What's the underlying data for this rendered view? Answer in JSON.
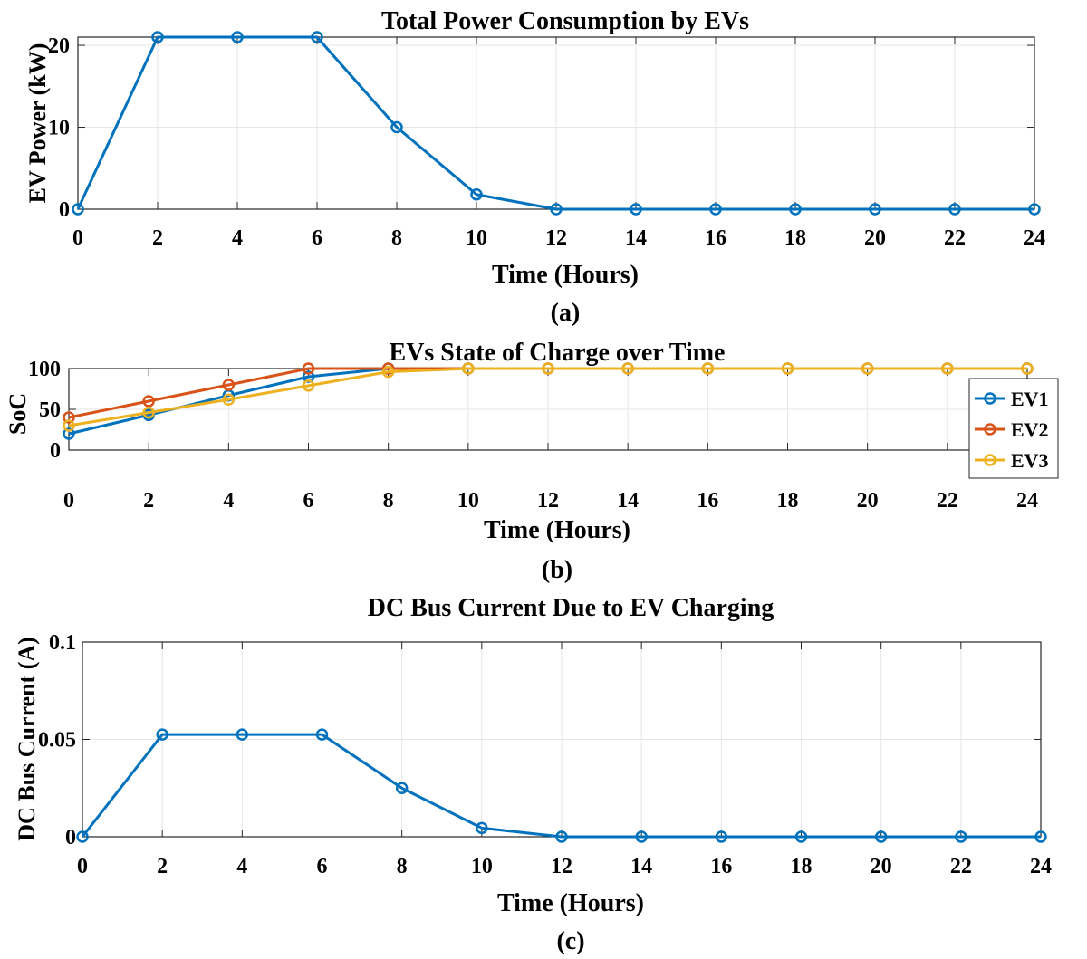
{
  "chart_data": [
    {
      "type": "line",
      "title": "Total Power Consumption by EVs",
      "xlabel": "Time (Hours)",
      "ylabel": "EV Power (kW)",
      "caption": "(a)",
      "xlim": [
        0,
        24
      ],
      "ylim": [
        0,
        21
      ],
      "xticks": [
        0,
        2,
        4,
        6,
        8,
        10,
        12,
        14,
        16,
        18,
        20,
        22,
        24
      ],
      "yticks": [
        0,
        10,
        20
      ],
      "grid": true,
      "x": [
        0,
        2,
        4,
        6,
        8,
        10,
        12,
        14,
        16,
        18,
        20,
        22,
        24
      ],
      "series": [
        {
          "values": [
            0,
            21,
            21,
            21,
            10,
            1.8,
            0,
            0,
            0,
            0,
            0,
            0,
            0
          ],
          "color": "#0072BD"
        }
      ]
    },
    {
      "type": "line",
      "title": "EVs State of Charge over Time",
      "xlabel": "Time (Hours)",
      "ylabel": "SoC",
      "caption": "(b)",
      "xlim": [
        0,
        24
      ],
      "ylim": [
        0,
        100
      ],
      "xticks": [
        0,
        2,
        4,
        6,
        8,
        10,
        12,
        14,
        16,
        18,
        20,
        22,
        24
      ],
      "yticks": [
        0,
        50,
        100
      ],
      "grid": true,
      "legend": "right",
      "x": [
        0,
        2,
        4,
        6,
        8,
        10,
        12,
        14,
        16,
        18,
        20,
        22,
        24
      ],
      "series": [
        {
          "name": "EV1",
          "values": [
            20,
            43,
            67,
            90,
            100,
            100,
            100,
            100,
            100,
            100,
            100,
            100,
            100
          ],
          "color": "#0072BD"
        },
        {
          "name": "EV2",
          "values": [
            40,
            60,
            80,
            100,
            100,
            100,
            100,
            100,
            100,
            100,
            100,
            100,
            100
          ],
          "color": "#D95319"
        },
        {
          "name": "EV3",
          "values": [
            30,
            46,
            62,
            79,
            96,
            100,
            100,
            100,
            100,
            100,
            100,
            100,
            100
          ],
          "color": "#EDB120"
        }
      ]
    },
    {
      "type": "line",
      "title": "DC Bus Current Due to EV Charging",
      "xlabel": "Time (Hours)",
      "ylabel": "DC Bus Current (A)",
      "caption": "(c)",
      "xlim": [
        0,
        24
      ],
      "ylim": [
        0,
        0.1
      ],
      "xticks": [
        0,
        2,
        4,
        6,
        8,
        10,
        12,
        14,
        16,
        18,
        20,
        22,
        24
      ],
      "yticks": [
        0,
        0.05,
        0.1
      ],
      "grid": true,
      "x": [
        0,
        2,
        4,
        6,
        8,
        10,
        12,
        14,
        16,
        18,
        20,
        22,
        24
      ],
      "series": [
        {
          "values": [
            0,
            0.0525,
            0.0525,
            0.0525,
            0.025,
            0.0045,
            0,
            0,
            0,
            0,
            0,
            0,
            0
          ],
          "color": "#0072BD"
        }
      ]
    }
  ]
}
